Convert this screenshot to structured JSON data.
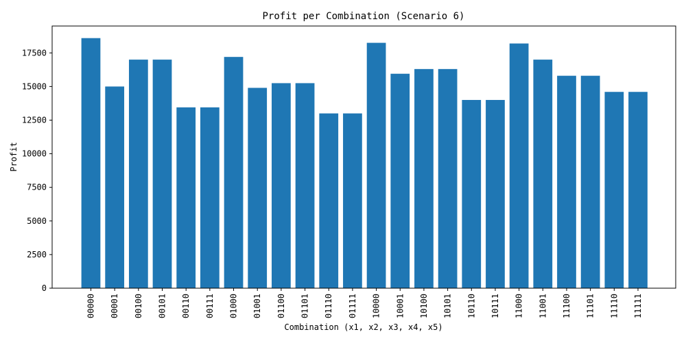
{
  "chart_data": {
    "type": "bar",
    "title": "Profit per Combination (Scenario 6)",
    "xlabel": "Combination (x1, x2, x3, x4, x5)",
    "ylabel": "Profit",
    "ylim": [
      0,
      19500
    ],
    "yticks": [
      0,
      2500,
      5000,
      7500,
      10000,
      12500,
      15000,
      17500
    ],
    "grid": false,
    "bar_color": "#1f77b4",
    "categories": [
      "00000",
      "00001",
      "00100",
      "00101",
      "00110",
      "00111",
      "01000",
      "01001",
      "01100",
      "01101",
      "01110",
      "01111",
      "10000",
      "10001",
      "10100",
      "10101",
      "10110",
      "10111",
      "11000",
      "11001",
      "11100",
      "11101",
      "11110",
      "11111"
    ],
    "values": [
      18600,
      15000,
      17000,
      17000,
      13450,
      13450,
      17200,
      14900,
      15250,
      15250,
      13000,
      13000,
      18250,
      15950,
      16300,
      16300,
      14000,
      14000,
      18200,
      17000,
      15800,
      15800,
      14600,
      14600
    ]
  }
}
